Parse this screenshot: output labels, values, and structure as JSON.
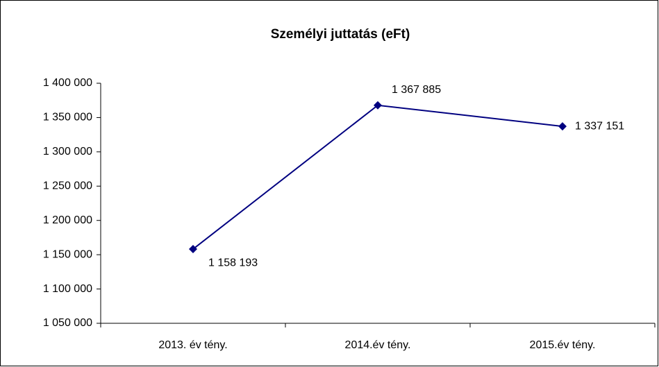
{
  "chart_data": {
    "type": "line",
    "title": "Személyi juttatás (eFt)",
    "categories": [
      "2013. év tény.",
      "2014.év tény.",
      "2015.év tény."
    ],
    "series": [
      {
        "name": "Személyi juttatás",
        "color": "#000080",
        "values": [
          1158193,
          1367885,
          1337151
        ],
        "value_labels": [
          "1 158 193",
          "1 367 885",
          "1 337 151"
        ]
      }
    ],
    "ylim": [
      1050000,
      1400000
    ],
    "yticks": [
      {
        "value": 1050000,
        "label": "1 050 000"
      },
      {
        "value": 1100000,
        "label": "1 100 000"
      },
      {
        "value": 1150000,
        "label": "1 150 000"
      },
      {
        "value": 1200000,
        "label": "1 200 000"
      },
      {
        "value": 1250000,
        "label": "1 250 000"
      },
      {
        "value": 1300000,
        "label": "1 300 000"
      },
      {
        "value": 1350000,
        "label": "1 350 000"
      },
      {
        "value": 1400000,
        "label": "1 400 000"
      }
    ],
    "grid": false
  }
}
